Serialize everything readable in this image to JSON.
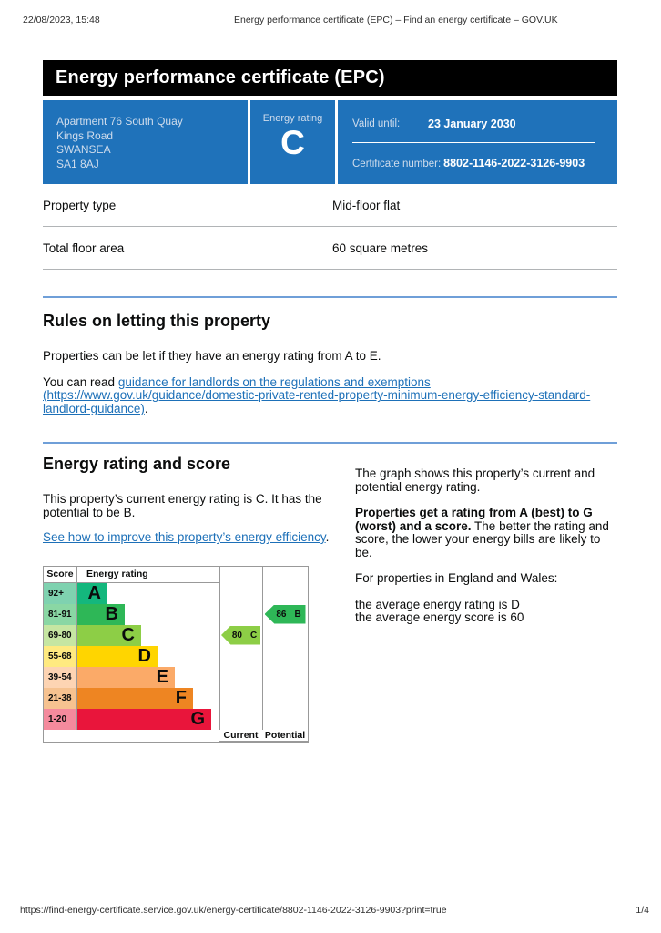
{
  "meta": {
    "datetime": "22/08/2023, 15:48",
    "doc_title": "Energy performance certificate (EPC) – Find an energy certificate – GOV.UK",
    "footer_url": "https://find-energy-certificate.service.gov.uk/energy-certificate/8802-1146-2022-3126-9903?print=true",
    "page_indicator": "1/4"
  },
  "banner": {
    "title": "Energy performance certificate (EPC)"
  },
  "colors": {
    "govuk_blue": "#1f72ba",
    "link_blue": "#1d70b8",
    "section_rule_blue": "#6f9fd8",
    "row_rule_grey": "#b1b4b6"
  },
  "summary": {
    "address_lines": [
      "Apartment 76 South Quay",
      "Kings Road",
      "SWANSEA",
      "SA1 8AJ"
    ],
    "energy_rating_label": "Energy rating",
    "energy_rating_value": "C",
    "valid_until_label": "Valid until:",
    "valid_until_value": "23 January 2030",
    "certificate_number_label": "Certificate number:",
    "certificate_number_value": "8802-1146-2022-3126-9903"
  },
  "property_details": {
    "rows": [
      {
        "label": "Property type",
        "value": "Mid-floor flat"
      },
      {
        "label": "Total floor area",
        "value": "60 square metres"
      }
    ]
  },
  "rules_section": {
    "heading": "Rules on letting this property",
    "para1": "Properties can be let if they have an energy rating from A to E.",
    "para2_prefix": "You can read ",
    "para2_link_text": "guidance for landlords on the regulations and exemptions",
    "para2_link_url": "(https://www.gov.uk/guidance/domestic-private-rented-property-minimum-energy-efficiency-standard-landlord-guidance)",
    "para2_suffix": "."
  },
  "rating_section": {
    "heading": "Energy rating and score",
    "current_text": "This property’s current energy rating is C. It has the potential to be B.",
    "improve_link": "See how to improve this property’s energy efficiency",
    "improve_suffix": ".",
    "right_para1": "The graph shows this property’s current and potential energy rating.",
    "right_para2_bold": "Properties get a rating from A (best) to G (worst) and a score.",
    "right_para2_rest": " The better the rating and score, the lower your energy bills are likely to be.",
    "right_para3": "For properties in England and Wales:",
    "right_para4_line1": "the average energy rating is D",
    "right_para4_line2": "the average energy score is 60"
  },
  "chart_data": {
    "type": "bar",
    "title": "Energy rating and score (EPC band chart)",
    "headers": [
      "Score",
      "Energy rating",
      "Current",
      "Potential"
    ],
    "bands": [
      {
        "score_range": "92+",
        "letter": "A",
        "color": "#14b77d",
        "tint": "#7fd2b0"
      },
      {
        "score_range": "81-91",
        "letter": "B",
        "color": "#2eb757",
        "tint": "#8ad7a4"
      },
      {
        "score_range": "69-80",
        "letter": "C",
        "color": "#8dce46",
        "tint": "#c6e6a2"
      },
      {
        "score_range": "55-68",
        "letter": "D",
        "color": "#ffd500",
        "tint": "#ffea80"
      },
      {
        "score_range": "39-54",
        "letter": "E",
        "color": "#fbaa68",
        "tint": "#fdd4b3"
      },
      {
        "score_range": "21-38",
        "letter": "F",
        "color": "#ee8522",
        "tint": "#f6c290"
      },
      {
        "score_range": "1-20",
        "letter": "G",
        "color": "#e9153b",
        "tint": "#f48a9d"
      }
    ],
    "current": {
      "score": "80",
      "letter": "C",
      "color": "#8dce46",
      "band_row": "C"
    },
    "potential": {
      "score": "86",
      "letter": "B",
      "color": "#2eb757",
      "band_row": "B"
    }
  }
}
